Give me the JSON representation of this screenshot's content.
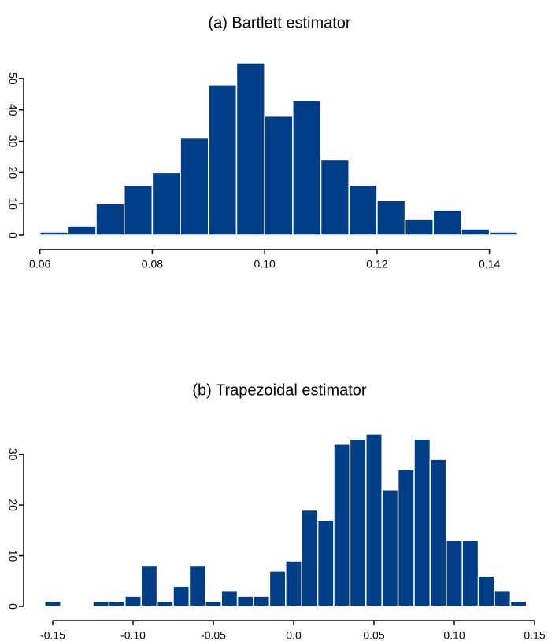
{
  "chart_data": [
    {
      "type": "histogram",
      "title": "(a) Bartlett estimator",
      "bins": [
        0.06,
        0.065,
        0.07,
        0.075,
        0.08,
        0.085,
        0.09,
        0.095,
        0.1,
        0.105,
        0.11,
        0.115,
        0.12,
        0.125,
        0.13,
        0.135,
        0.14,
        0.145
      ],
      "values": [
        1,
        3,
        10,
        16,
        20,
        31,
        48,
        55,
        38,
        43,
        24,
        16,
        11,
        5,
        8,
        2,
        1
      ],
      "color": "#003f87",
      "xlim": [
        0.055,
        0.15
      ],
      "xticks": [
        {
          "value": 0.06,
          "label": "0.06"
        },
        {
          "value": 0.08,
          "label": "0.08"
        },
        {
          "value": 0.1,
          "label": "0.10"
        },
        {
          "value": 0.12,
          "label": "0.12"
        },
        {
          "value": 0.14,
          "label": "0.14"
        }
      ],
      "ylim": [
        0,
        57
      ],
      "yticks": [
        0,
        10,
        20,
        30,
        40,
        50
      ]
    },
    {
      "type": "histogram",
      "title": "(b) Trapezoidal estimator",
      "bins": [
        -0.155,
        -0.145,
        -0.135,
        -0.125,
        -0.115,
        -0.105,
        -0.095,
        -0.085,
        -0.075,
        -0.065,
        -0.055,
        -0.045,
        -0.035,
        -0.025,
        -0.015,
        -0.005,
        0.005,
        0.015,
        0.025,
        0.035,
        0.045,
        0.055,
        0.065,
        0.075,
        0.085,
        0.095,
        0.105,
        0.115,
        0.125,
        0.135,
        0.145
      ],
      "values": [
        1,
        0,
        0,
        1,
        1,
        2,
        8,
        1,
        4,
        8,
        1,
        3,
        2,
        2,
        7,
        9,
        19,
        17,
        32,
        33,
        34,
        23,
        27,
        33,
        29,
        13,
        13,
        6,
        3,
        1
      ],
      "color": "#003f87",
      "xlim": [
        -0.16,
        0.16
      ],
      "xticks": [
        -0.15,
        {
          "value": -0.1,
          "label": "-0.10"
        },
        -0.05,
        {
          "value": 0,
          "label": "0.0"
        },
        0.05,
        {
          "value": 0.1,
          "label": "0.10"
        },
        0.15
      ],
      "ylim": [
        0,
        36
      ],
      "yticks": [
        0,
        10,
        20,
        30
      ]
    }
  ]
}
